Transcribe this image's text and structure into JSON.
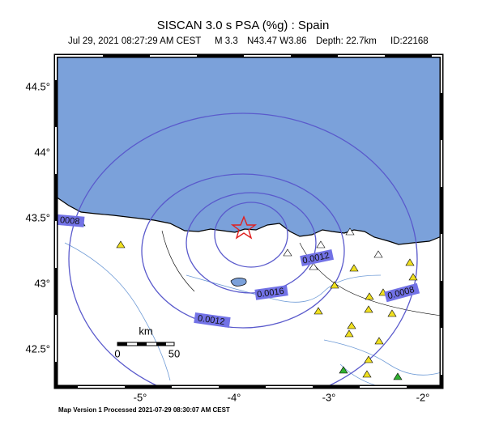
{
  "header": {
    "title": "SISCAN 3.0 s PSA (%g) : Spain",
    "subtitle": {
      "date": "Jul 29, 2021 08:27:29 AM CEST",
      "magnitude": "M 3.3",
      "location": "N43.47 W3.86",
      "depth": "Depth: 22.7km",
      "id": "ID:22168"
    }
  },
  "map": {
    "lat_labels": [
      "44.5°",
      "44°",
      "43.5°",
      "43°",
      "42.5°"
    ],
    "lon_labels": [
      "-5°",
      "-4°",
      "-3°",
      "-2°"
    ],
    "contour_labels": [
      "0008",
      "0.0012",
      "0.0016",
      "0.0012",
      "0.0008"
    ],
    "scale": {
      "unit": "km",
      "start": "0",
      "end": "50"
    }
  },
  "footer": "Map Version 1 Processed 2021-07-29 08:30:07 AM CEST"
}
